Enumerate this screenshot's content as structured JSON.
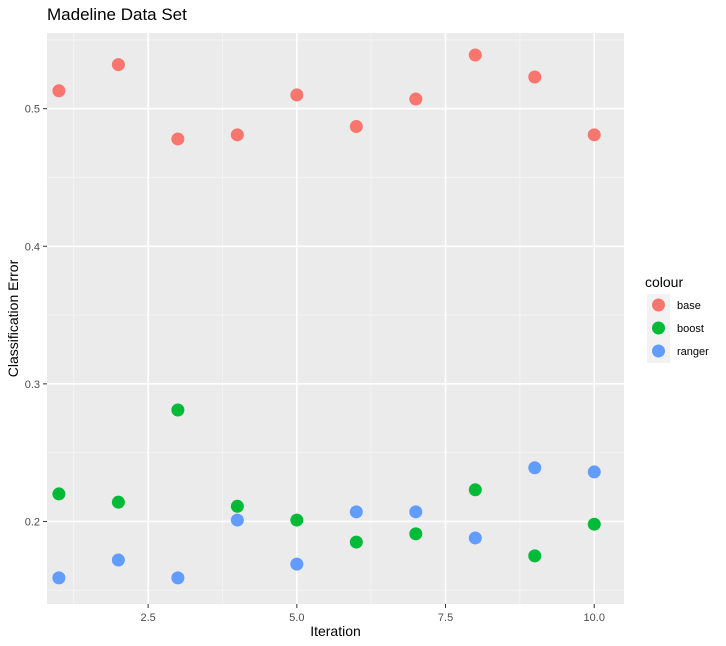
{
  "chart_data": {
    "type": "scatter",
    "title": "Madeline Data Set",
    "xlabel": "Iteration",
    "ylabel": "Classification Error",
    "xlim": [
      0.8,
      10.5
    ],
    "ylim": [
      0.14,
      0.555
    ],
    "xticks": [
      2.5,
      5.0,
      7.5,
      10.0
    ],
    "xtick_labels": [
      "2.5",
      "5.0",
      "7.5",
      "10.0"
    ],
    "yticks": [
      0.2,
      0.3,
      0.4,
      0.5
    ],
    "ytick_labels": [
      "0.2",
      "0.3",
      "0.4",
      "0.5"
    ],
    "grid": true,
    "legend": {
      "title": "colour",
      "position": "right"
    },
    "series": [
      {
        "name": "base",
        "color": "#F8766D",
        "x": [
          1,
          2,
          3,
          4,
          5,
          6,
          7,
          8,
          9,
          10
        ],
        "y": [
          0.513,
          0.532,
          0.478,
          0.481,
          0.51,
          0.487,
          0.507,
          0.539,
          0.523,
          0.481
        ]
      },
      {
        "name": "boost",
        "color": "#00BA38",
        "x": [
          1,
          2,
          3,
          4,
          5,
          6,
          7,
          8,
          9,
          10
        ],
        "y": [
          0.22,
          0.214,
          0.281,
          0.211,
          0.201,
          0.185,
          0.191,
          0.223,
          0.175,
          0.198
        ]
      },
      {
        "name": "ranger",
        "color": "#619CFF",
        "x": [
          1,
          2,
          3,
          4,
          5,
          6,
          7,
          8,
          9,
          10
        ],
        "y": [
          0.159,
          0.172,
          0.159,
          0.201,
          0.169,
          0.207,
          0.207,
          0.188,
          0.239,
          0.236
        ]
      }
    ]
  }
}
